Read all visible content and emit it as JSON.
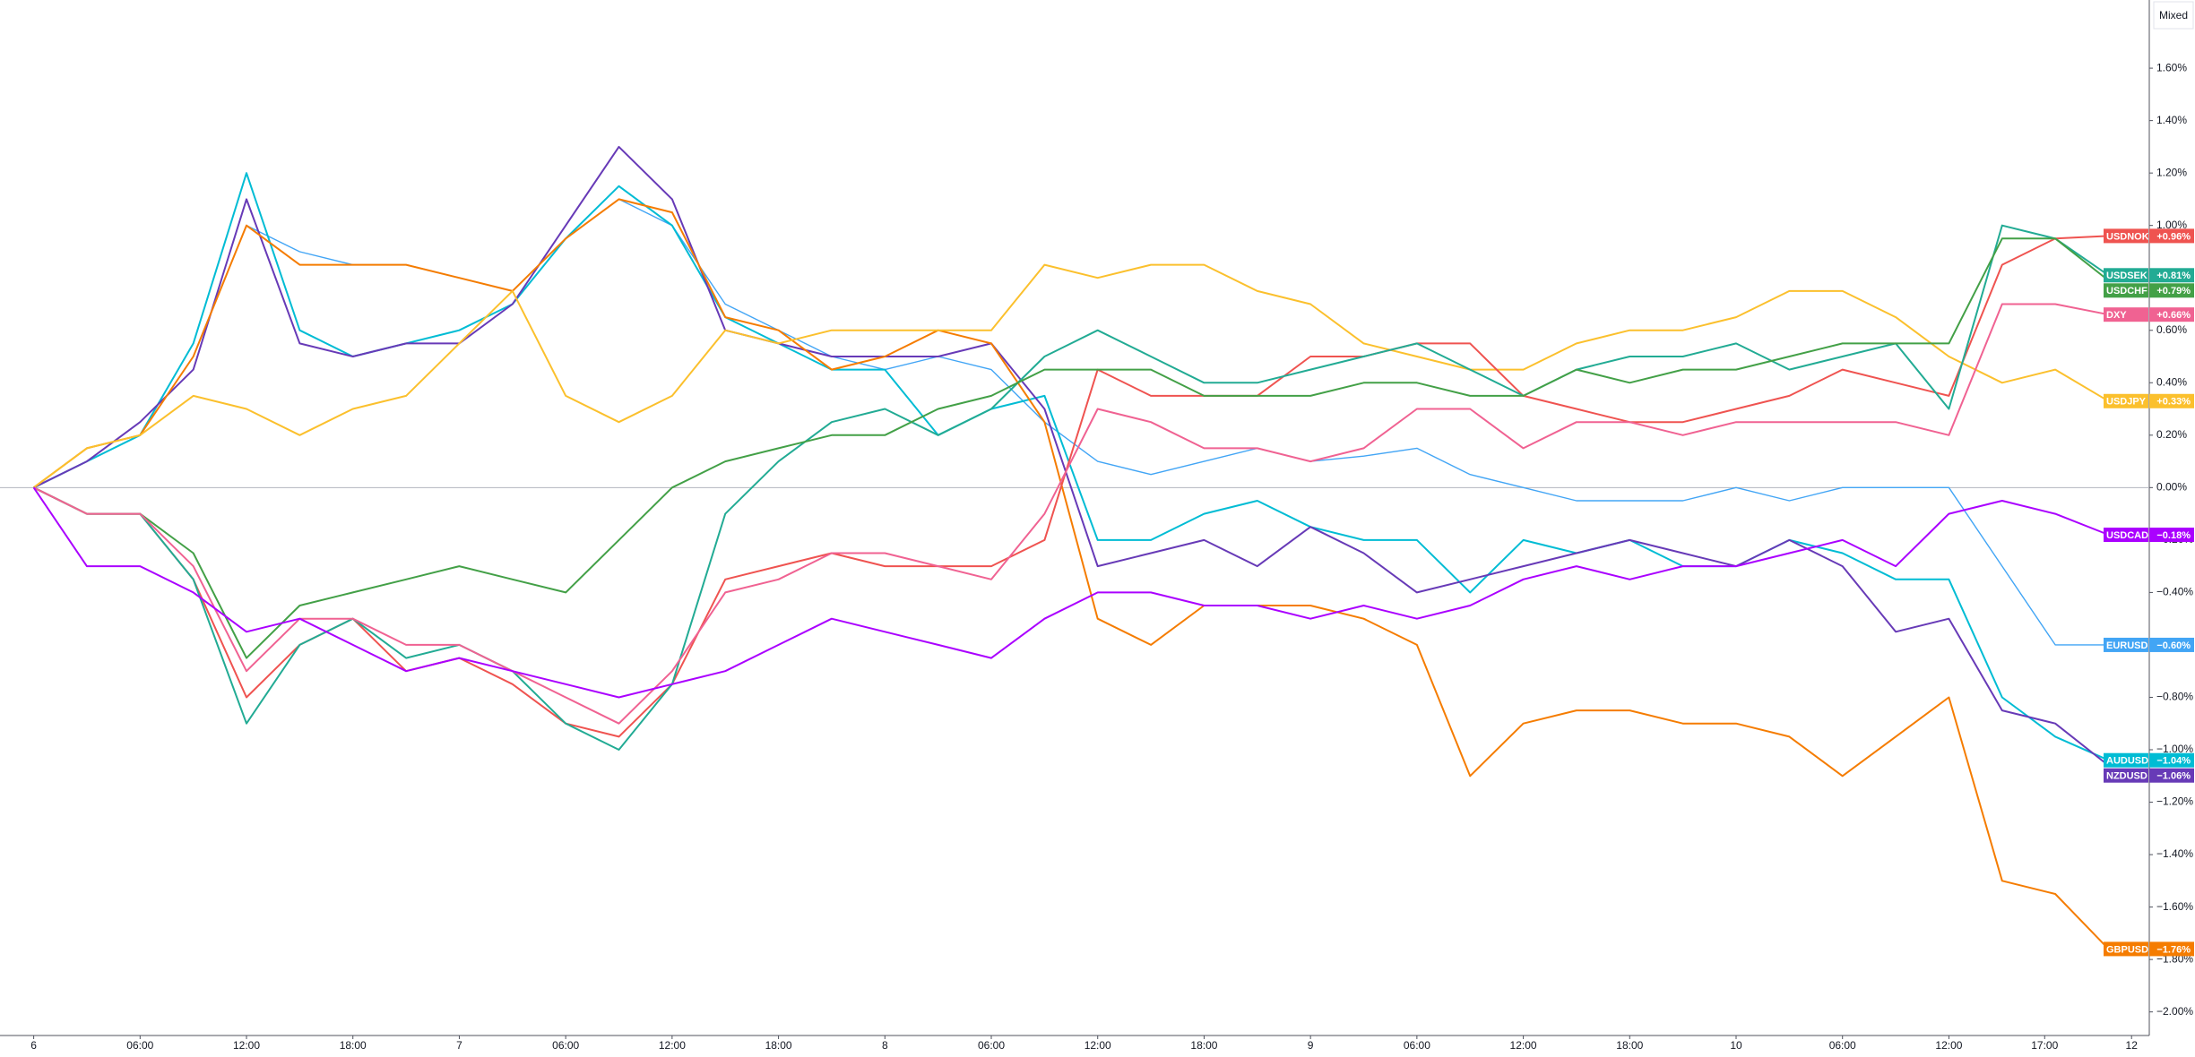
{
  "chart_data": {
    "type": "line",
    "scale_button": "Mixed",
    "baseline": 0,
    "xlim": [
      -1.9,
      119.3
    ],
    "ylim": [
      -2.09,
      1.86
    ],
    "xticks": [
      {
        "value": 0,
        "label": "6"
      },
      {
        "value": 6,
        "label": "06:00"
      },
      {
        "value": 12,
        "label": "12:00"
      },
      {
        "value": 18,
        "label": "18:00"
      },
      {
        "value": 24,
        "label": "7"
      },
      {
        "value": 30,
        "label": "06:00"
      },
      {
        "value": 36,
        "label": "12:00"
      },
      {
        "value": 42,
        "label": "18:00"
      },
      {
        "value": 48,
        "label": "8"
      },
      {
        "value": 54,
        "label": "06:00"
      },
      {
        "value": 60,
        "label": "12:00"
      },
      {
        "value": 66,
        "label": "18:00"
      },
      {
        "value": 72,
        "label": "9"
      },
      {
        "value": 78,
        "label": "06:00"
      },
      {
        "value": 84,
        "label": "12:00"
      },
      {
        "value": 90,
        "label": "18:00"
      },
      {
        "value": 96,
        "label": "10"
      },
      {
        "value": 102,
        "label": "06:00"
      },
      {
        "value": 108,
        "label": "12:00"
      },
      {
        "value": 113.4,
        "label": "17:00"
      },
      {
        "value": 118.3,
        "label": "12"
      }
    ],
    "yticks": [
      {
        "value": 1.6,
        "label": "1.60%"
      },
      {
        "value": 1.4,
        "label": "1.40%"
      },
      {
        "value": 1.2,
        "label": "1.20%"
      },
      {
        "value": 1.0,
        "label": "1.00%"
      },
      {
        "value": 0.8,
        "label": "0.80%"
      },
      {
        "value": 0.6,
        "label": "0.60%"
      },
      {
        "value": 0.4,
        "label": "0.40%"
      },
      {
        "value": 0.2,
        "label": "0.20%"
      },
      {
        "value": 0,
        "label": "0.00%"
      },
      {
        "value": -0.2,
        "label": "−0.20%"
      },
      {
        "value": -0.4,
        "label": "−0.40%"
      },
      {
        "value": -0.6,
        "label": "−0.60%"
      },
      {
        "value": -0.8,
        "label": "−0.80%"
      },
      {
        "value": -1.0,
        "label": "−1.00%"
      },
      {
        "value": -1.2,
        "label": "−1.20%"
      },
      {
        "value": -1.4,
        "label": "−1.40%"
      },
      {
        "value": -1.6,
        "label": "−1.60%"
      },
      {
        "value": -1.8,
        "label": "−1.80%"
      },
      {
        "value": -2.0,
        "label": "−2.00%"
      }
    ],
    "x": [
      0,
      3,
      6,
      9,
      12,
      15,
      18,
      21,
      24,
      27,
      30,
      33,
      36,
      39,
      42,
      45,
      48,
      51,
      54,
      57,
      60,
      63,
      66,
      69,
      72,
      75,
      78,
      81,
      84,
      87,
      90,
      93,
      96,
      99,
      102,
      105,
      108,
      111,
      114,
      117
    ],
    "series": [
      {
        "name": "EURUSD",
        "color": "#42a5f5",
        "last_label": "−0.60%",
        "values": [
          0,
          0.15,
          0.2,
          0.5,
          1.0,
          0.9,
          0.85,
          0.85,
          0.8,
          0.75,
          0.95,
          1.1,
          1.0,
          0.7,
          0.6,
          0.5,
          0.45,
          0.5,
          0.45,
          0.25,
          0.1,
          0.05,
          0.1,
          0.15,
          0.1,
          0.12,
          0.15,
          0.05,
          0.0,
          -0.05,
          -0.05,
          -0.05,
          0.0,
          -0.05,
          0.0,
          0.0,
          0.0,
          -0.3,
          -0.6,
          -0.6
        ]
      },
      {
        "name": "AUDUSD",
        "color": "#00bcd4",
        "last_label": "−1.04%",
        "values": [
          0,
          0.1,
          0.2,
          0.55,
          1.2,
          0.6,
          0.5,
          0.55,
          0.6,
          0.7,
          0.95,
          1.15,
          1.0,
          0.65,
          0.55,
          0.45,
          0.45,
          0.2,
          0.3,
          0.35,
          -0.2,
          -0.2,
          -0.1,
          -0.05,
          -0.15,
          -0.2,
          -0.2,
          -0.4,
          -0.2,
          -0.25,
          -0.2,
          -0.3,
          -0.3,
          -0.2,
          -0.25,
          -0.35,
          -0.35,
          -0.8,
          -0.95,
          -1.04
        ]
      },
      {
        "name": "NZDUSD",
        "color": "#673ab7",
        "last_label": "−1.06%",
        "values": [
          0,
          0.1,
          0.25,
          0.45,
          1.1,
          0.55,
          0.5,
          0.55,
          0.55,
          0.7,
          1.0,
          1.3,
          1.1,
          0.6,
          0.55,
          0.5,
          0.5,
          0.5,
          0.55,
          0.3,
          -0.3,
          -0.25,
          -0.2,
          -0.3,
          -0.15,
          -0.25,
          -0.4,
          -0.35,
          -0.3,
          -0.25,
          -0.2,
          -0.25,
          -0.3,
          -0.2,
          -0.3,
          -0.55,
          -0.5,
          -0.85,
          -0.9,
          -1.06
        ]
      },
      {
        "name": "GBPUSD",
        "color": "#f57c00",
        "last_label": "−1.76%",
        "values": [
          0,
          0.15,
          0.2,
          0.5,
          1.0,
          0.85,
          0.85,
          0.85,
          0.8,
          0.75,
          0.95,
          1.1,
          1.05,
          0.65,
          0.6,
          0.45,
          0.5,
          0.6,
          0.55,
          0.25,
          -0.5,
          -0.6,
          -0.45,
          -0.45,
          -0.45,
          -0.5,
          -0.6,
          -1.1,
          -0.9,
          -0.85,
          -0.85,
          -0.9,
          -0.9,
          -0.95,
          -1.1,
          -0.95,
          -0.8,
          -1.5,
          -1.55,
          -1.76
        ]
      },
      {
        "name": "USDJPY",
        "color": "#fbc02d",
        "last_label": "+0.33%",
        "values": [
          0,
          0.15,
          0.2,
          0.35,
          0.3,
          0.2,
          0.3,
          0.35,
          0.55,
          0.75,
          0.35,
          0.25,
          0.35,
          0.6,
          0.55,
          0.6,
          0.6,
          0.6,
          0.6,
          0.85,
          0.8,
          0.85,
          0.85,
          0.75,
          0.7,
          0.55,
          0.5,
          0.45,
          0.45,
          0.55,
          0.6,
          0.6,
          0.65,
          0.75,
          0.75,
          0.65,
          0.5,
          0.4,
          0.45,
          0.33
        ]
      },
      {
        "name": "USDNOK",
        "color": "#ef5350",
        "last_label": "+0.96%",
        "values": [
          0,
          -0.1,
          -0.1,
          -0.35,
          -0.8,
          -0.6,
          -0.5,
          -0.7,
          -0.65,
          -0.75,
          -0.9,
          -0.95,
          -0.75,
          -0.35,
          -0.3,
          -0.25,
          -0.3,
          -0.3,
          -0.3,
          -0.2,
          0.45,
          0.35,
          0.35,
          0.35,
          0.5,
          0.5,
          0.55,
          0.55,
          0.35,
          0.3,
          0.25,
          0.25,
          0.3,
          0.35,
          0.45,
          0.4,
          0.35,
          0.85,
          0.95,
          0.96
        ]
      },
      {
        "name": "USDSEK",
        "color": "#22ab94",
        "last_label": "+0.81%",
        "values": [
          0,
          -0.1,
          -0.1,
          -0.35,
          -0.9,
          -0.6,
          -0.5,
          -0.65,
          -0.6,
          -0.7,
          -0.9,
          -1.0,
          -0.75,
          -0.1,
          0.1,
          0.25,
          0.3,
          0.2,
          0.3,
          0.5,
          0.6,
          0.5,
          0.4,
          0.4,
          0.45,
          0.5,
          0.55,
          0.45,
          0.35,
          0.45,
          0.5,
          0.5,
          0.55,
          0.45,
          0.5,
          0.55,
          0.3,
          1.0,
          0.95,
          0.81
        ]
      },
      {
        "name": "USDCHF",
        "color": "#43a047",
        "last_label": "+0.79%",
        "values": [
          0,
          -0.1,
          -0.1,
          -0.25,
          -0.65,
          -0.45,
          -0.4,
          -0.35,
          -0.3,
          -0.35,
          -0.4,
          -0.2,
          0.0,
          0.1,
          0.15,
          0.2,
          0.2,
          0.3,
          0.35,
          0.45,
          0.45,
          0.45,
          0.35,
          0.35,
          0.35,
          0.4,
          0.4,
          0.35,
          0.35,
          0.45,
          0.4,
          0.45,
          0.45,
          0.5,
          0.55,
          0.55,
          0.55,
          0.95,
          0.95,
          0.79
        ]
      },
      {
        "name": "DXY",
        "color": "#f06292",
        "last_label": "+0.66%",
        "values": [
          0,
          -0.1,
          -0.1,
          -0.3,
          -0.7,
          -0.5,
          -0.5,
          -0.6,
          -0.6,
          -0.7,
          -0.8,
          -0.9,
          -0.7,
          -0.4,
          -0.35,
          -0.25,
          -0.25,
          -0.3,
          -0.35,
          -0.1,
          0.3,
          0.25,
          0.15,
          0.15,
          0.1,
          0.15,
          0.3,
          0.3,
          0.15,
          0.25,
          0.25,
          0.2,
          0.25,
          0.25,
          0.25,
          0.25,
          0.2,
          0.7,
          0.7,
          0.66
        ]
      },
      {
        "name": "USDCAD",
        "color": "#aa00ff",
        "last_label": "−0.18%",
        "values": [
          0,
          -0.3,
          -0.3,
          -0.4,
          -0.55,
          -0.5,
          -0.6,
          -0.7,
          -0.65,
          -0.7,
          -0.75,
          -0.8,
          -0.75,
          -0.7,
          -0.6,
          -0.5,
          -0.55,
          -0.6,
          -0.65,
          -0.5,
          -0.4,
          -0.4,
          -0.45,
          -0.45,
          -0.5,
          -0.45,
          -0.5,
          -0.45,
          -0.35,
          -0.3,
          -0.35,
          -0.3,
          -0.3,
          -0.25,
          -0.2,
          -0.3,
          -0.1,
          -0.05,
          -0.1,
          -0.18
        ]
      }
    ]
  }
}
